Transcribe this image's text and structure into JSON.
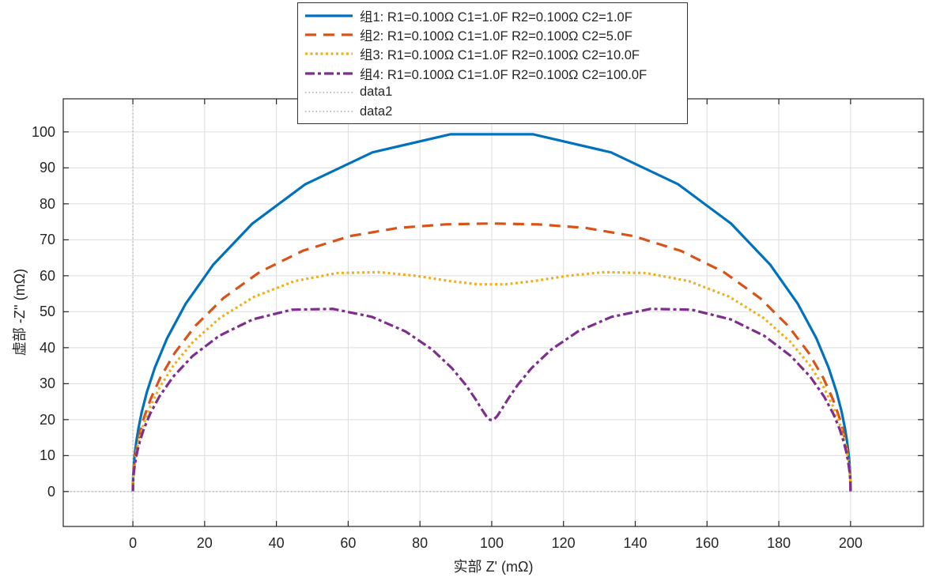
{
  "chart_data": {
    "type": "line",
    "subtype": "nyquist-impedance",
    "title": "",
    "xlabel": "实部 Z' (mΩ)",
    "ylabel": "虚部 -Z'' (mΩ)",
    "xlim": [
      -19.4,
      220.3
    ],
    "ylim": [
      -9.7,
      109.2
    ],
    "xticks": [
      0,
      20,
      40,
      60,
      80,
      100,
      120,
      140,
      160,
      180,
      200
    ],
    "yticks": [
      0,
      10,
      20,
      30,
      40,
      50,
      60,
      70,
      80,
      90,
      100
    ],
    "grid": true,
    "colors": {
      "grid": "#dcdcdc",
      "axis": "#262626",
      "tick_label": "#262626",
      "background": "#ffffff"
    },
    "model": "Z(omega) = R1/(1+j*omega*R1*C1) + R2/(1+j*omega*R2*C2); each curve plots (Re Z, -Im Z) in mOhm over a log-spaced omega sweep",
    "sampling": {
      "omega_log10_min": -3.95,
      "omega_log10_max": 3.95,
      "n_points": 80
    },
    "series": [
      {
        "name": "组1",
        "label": "组1: R1=0.100Ω C1=1.0F R2=0.100Ω C2=1.0F",
        "color": "#0072BD",
        "linestyle": "solid",
        "R1_ohm": 0.1,
        "C1_F": 1.0,
        "R2_ohm": 0.1,
        "C2_F": 1.0,
        "features": {
          "x_span_mOhm": [
            0,
            200
          ],
          "peaks": [
            [
              100,
              99.5
            ]
          ]
        }
      },
      {
        "name": "组2",
        "label": "组2: R1=0.100Ω C1=1.0F R2=0.100Ω C2=5.0F",
        "color": "#D95319",
        "linestyle": "dashed",
        "R1_ohm": 0.1,
        "C1_F": 1.0,
        "R2_ohm": 0.1,
        "C2_F": 5.0,
        "features": {
          "x_span_mOhm": [
            0,
            200
          ],
          "peaks": [
            [
              100,
              74.5
            ]
          ]
        }
      },
      {
        "name": "组3",
        "label": "组3: R1=0.100Ω C1=1.0F R2=0.100Ω C2=10.0F",
        "color": "#EDB120",
        "linestyle": "dotted",
        "R1_ohm": 0.1,
        "C1_F": 1.0,
        "R2_ohm": 0.1,
        "C2_F": 10.0,
        "features": {
          "x_span_mOhm": [
            0,
            200
          ],
          "peaks": [
            [
              62,
              61
            ],
            [
              138,
              61
            ]
          ],
          "local_min": [
            100,
            57.5
          ]
        }
      },
      {
        "name": "组4",
        "label": "组4: R1=0.100Ω C1=1.0F R2=0.100Ω C2=100.0F",
        "color": "#7E2F8E",
        "linestyle": "dashdot",
        "R1_ohm": 0.1,
        "C1_F": 1.0,
        "R2_ohm": 0.1,
        "C2_F": 100.0,
        "features": {
          "x_span_mOhm": [
            0,
            200
          ],
          "peaks": [
            [
              50,
              51
            ],
            [
              150,
              51
            ]
          ],
          "local_min": [
            100,
            19.8
          ]
        }
      }
    ],
    "reference_lines": [
      {
        "name": "data1",
        "orientation": "vertical",
        "value": 0,
        "color": "#999999",
        "linestyle": "ref-dotted"
      },
      {
        "name": "data2",
        "orientation": "horizontal",
        "value": 0,
        "color": "#999999",
        "linestyle": "ref-dotted"
      }
    ],
    "legend": {
      "position": "top-center",
      "border_color": "#333333",
      "background": "#ffffff"
    }
  }
}
